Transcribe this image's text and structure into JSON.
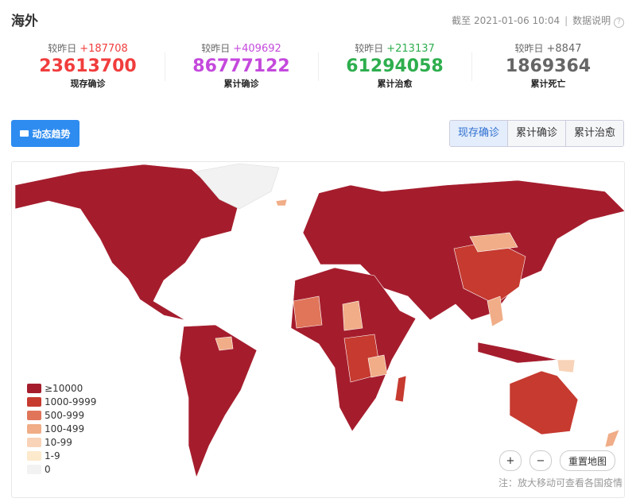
{
  "header": {
    "title": "海外",
    "timestamp": "截至 2021-01-06 10:04",
    "help": "数据说明"
  },
  "stats": [
    {
      "compare": "较昨日",
      "delta": "+187708",
      "value": "23613700",
      "label": "现存确诊",
      "color": "#f13d3d"
    },
    {
      "compare": "较昨日",
      "delta": "+409692",
      "value": "86777122",
      "label": "累计确诊",
      "color": "#c449dc"
    },
    {
      "compare": "较昨日",
      "delta": "+213137",
      "value": "61294058",
      "label": "累计治愈",
      "color": "#2eae4e"
    },
    {
      "compare": "较昨日",
      "delta": "+8847",
      "value": "1869364",
      "label": "累计死亡",
      "color": "#666666"
    }
  ],
  "trend_button": "动态趋势",
  "tabs": [
    "现存确诊",
    "累计确诊",
    "累计治愈"
  ],
  "legend": [
    {
      "label": "≥10000",
      "color": "#a51d2d"
    },
    {
      "label": "1000-9999",
      "color": "#c63a30"
    },
    {
      "label": "500-999",
      "color": "#e0755a"
    },
    {
      "label": "100-499",
      "color": "#f0ad87"
    },
    {
      "label": "10-99",
      "color": "#f8d3b8"
    },
    {
      "label": "1-9",
      "color": "#fde9cc"
    },
    {
      "label": "0",
      "color": "#f2f2f2"
    }
  ],
  "controls": {
    "zoom_in": "+",
    "zoom_out": "−",
    "reset": "重置地图"
  },
  "note": "注：放大移动可查看各国疫情"
}
